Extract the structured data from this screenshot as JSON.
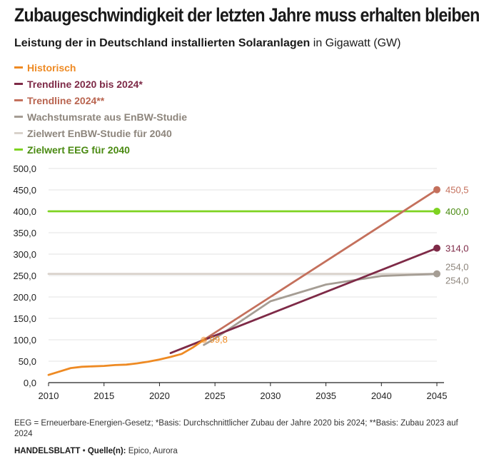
{
  "title": "Zubaugeschwindigkeit der letzten Jahre muss erhalten bleiben",
  "subtitle_bold": "Leistung der in Deutschland installierten Solaranlagen",
  "subtitle_rest": " in Gigawatt (GW)",
  "footnote": "EEG = Erneuerbare-Energien-Gesetz; *Basis: Durchschnittlicher Zubau der Jahre 2020 bis 2024; **Basis: Zubau 2023 auf 2024",
  "credit": {
    "publisher": "HANDELSBLATT",
    "separator": " • ",
    "source_label": "Quelle(n):",
    "source_value": " Epico, Aurora"
  },
  "chart_data": {
    "type": "line",
    "xlim": [
      2010,
      2045
    ],
    "ylim": [
      0,
      500
    ],
    "x_ticks": [
      2010,
      2015,
      2020,
      2025,
      2030,
      2035,
      2040,
      2045
    ],
    "y_ticks": [
      0,
      50,
      100,
      150,
      200,
      250,
      300,
      350,
      400,
      450,
      500
    ],
    "y_tick_labels": [
      "0,0",
      "50,0",
      "100,0",
      "150,0",
      "200,0",
      "250,0",
      "300,0",
      "350,0",
      "400,0",
      "450,0",
      "500,0"
    ],
    "grid": "horizontal",
    "legend_position": "top-left",
    "series": [
      {
        "name": "Historisch",
        "color": "#ee8a23",
        "width": 2.8,
        "points": [
          [
            2010,
            18
          ],
          [
            2011,
            26
          ],
          [
            2012,
            34
          ],
          [
            2013,
            37
          ],
          [
            2014,
            38
          ],
          [
            2015,
            39
          ],
          [
            2016,
            41
          ],
          [
            2017,
            42
          ],
          [
            2018,
            45
          ],
          [
            2019,
            49
          ],
          [
            2020,
            54
          ],
          [
            2021,
            60
          ],
          [
            2022,
            67
          ],
          [
            2023,
            82
          ],
          [
            2024,
            99.8
          ]
        ],
        "end_label": "99,8",
        "end_label_color": "#ee8a23",
        "marker_at": [
          2024,
          99.8
        ]
      },
      {
        "name": "Trendline 2020 bis 2024*",
        "color": "#7e2a47",
        "width": 2.8,
        "points": [
          [
            2021,
            69
          ],
          [
            2045,
            314
          ]
        ],
        "end_label": "314,0",
        "end_label_color": "#7e2a47"
      },
      {
        "name": "Trendline 2024**",
        "color": "#c4705c",
        "width": 2.8,
        "points": [
          [
            2024,
            100
          ],
          [
            2045,
            450.5
          ]
        ],
        "end_label": "450,5",
        "end_label_color": "#c4705c"
      },
      {
        "name": "Wachstumsrate aus EnBW-Studie",
        "color": "#a59d94",
        "width": 2.8,
        "points": [
          [
            2024,
            88
          ],
          [
            2025,
            103
          ],
          [
            2030,
            190
          ],
          [
            2035,
            229
          ],
          [
            2040,
            249
          ],
          [
            2045,
            254
          ]
        ],
        "end_label": "254,0",
        "end_label_color": "#8d857c"
      },
      {
        "name": "Zielwert EnBW-Studie für 2040",
        "color": "#d9d2cb",
        "width": 2.8,
        "points": [
          [
            2010,
            254
          ],
          [
            2045,
            254
          ]
        ],
        "end_label": "254,0",
        "end_label_color": "#8d857c"
      },
      {
        "name": "Zielwert EEG für 2040",
        "color": "#7ed321",
        "width": 2.8,
        "points": [
          [
            2010,
            400
          ],
          [
            2045,
            400
          ]
        ],
        "end_label": "400,0",
        "end_label_color": "#4a8a12"
      }
    ]
  }
}
